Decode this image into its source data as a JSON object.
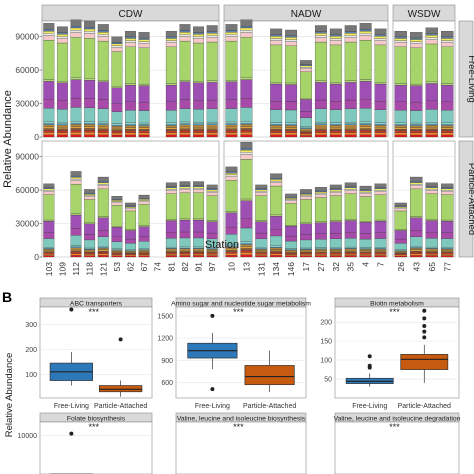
{
  "figure": {
    "panel_b_letter": "B"
  },
  "panelA": {
    "ylabel": "Relative Abundance",
    "xlabel": "Station",
    "col_strips": [
      "CDW",
      "NADW",
      "WSDW"
    ],
    "row_strips": [
      "Free-Living",
      "Particle-Attached"
    ],
    "y_ticks": [
      "0",
      "30000",
      "60000",
      "90000"
    ],
    "stations_groups": [
      [
        "103",
        "109",
        "112",
        "118",
        "121",
        "53",
        "62",
        "67",
        "74",
        "81",
        "82",
        "91",
        "97"
      ],
      [
        "10",
        "13",
        "131",
        "134",
        "146",
        "17",
        "27",
        "32",
        "35",
        "4",
        "7"
      ],
      [
        "26",
        "43",
        "65",
        "77"
      ]
    ],
    "palette": [
      "#e41a1c",
      "#f08a2e",
      "#c0392b",
      "#8e5a3c",
      "#d9a441",
      "#b8863b",
      "#56b4e9",
      "#8fd3cc",
      "#7fc8be",
      "#a84aa8",
      "#9d4fb3",
      "#b5d67a",
      "#a6d36a",
      "#f7c8c8",
      "#e6e6e6",
      "#f2e85c",
      "#5b7fb0",
      "#777777"
    ]
  },
  "chart_data": [
    {
      "type": "bar",
      "title": "Free-Living",
      "facet_columns": [
        "CDW",
        "NADW",
        "WSDW"
      ],
      "stacked": true,
      "xlabel": "Station",
      "ylabel": "Relative Abundance",
      "ylim": [
        0,
        104000
      ],
      "groups": [
        {
          "name": "CDW",
          "categories": [
            "103",
            "109",
            "112",
            "118",
            "121",
            "53",
            "62",
            "67",
            "74",
            "81",
            "82",
            "91",
            "97"
          ],
          "totals": [
            101000,
            98000,
            104000,
            103000,
            100000,
            89000,
            94000,
            93000,
            0,
            94000,
            100000,
            98000,
            99000
          ]
        },
        {
          "name": "NADW",
          "categories": [
            "10",
            "13",
            "131",
            "134",
            "146",
            "17",
            "27",
            "32",
            "35",
            "4",
            "7"
          ],
          "totals": [
            100000,
            104000,
            0,
            96000,
            95000,
            68000,
            99000,
            96000,
            99000,
            101000,
            96000
          ]
        },
        {
          "name": "WSDW",
          "categories": [
            "26",
            "43",
            "65",
            "77"
          ],
          "totals": [
            94000,
            93000,
            97000,
            94000
          ]
        }
      ]
    },
    {
      "type": "bar",
      "title": "Particle-Attached",
      "facet_columns": [
        "CDW",
        "NADW",
        "WSDW"
      ],
      "stacked": true,
      "xlabel": "Station",
      "ylabel": "Relative Abundance",
      "ylim": [
        0,
        104000
      ],
      "groups": [
        {
          "name": "CDW",
          "categories": [
            "103",
            "109",
            "112",
            "118",
            "121",
            "53",
            "62",
            "67",
            "74",
            "81",
            "82",
            "91",
            "97"
          ],
          "totals": [
            65000,
            0,
            76000,
            60000,
            71000,
            54000,
            48000,
            55000,
            0,
            66000,
            67000,
            67000,
            64000
          ]
        },
        {
          "name": "NADW",
          "categories": [
            "10",
            "13",
            "131",
            "134",
            "146",
            "17",
            "27",
            "32",
            "35",
            "4",
            "7"
          ],
          "totals": [
            80000,
            102000,
            64000,
            74000,
            56000,
            60000,
            62000,
            64000,
            66000,
            63000,
            65000
          ]
        },
        {
          "name": "WSDW",
          "categories": [
            "26",
            "43",
            "65",
            "77"
          ],
          "totals": [
            48000,
            71000,
            66000,
            65000
          ]
        }
      ]
    },
    {
      "type": "boxplot",
      "title": "ABC transporters",
      "categories": [
        "Free-Living",
        "Particle-Attached"
      ],
      "significance": "***",
      "y_ticks": [
        "100",
        "200",
        "300"
      ],
      "ylim": [
        5,
        370
      ],
      "boxes": [
        {
          "name": "Free-Living",
          "min": 55,
          "q1": 75,
          "median": 110,
          "q3": 145,
          "max": 190,
          "outliers": [
            360
          ]
        },
        {
          "name": "Particle-Attached",
          "min": 10,
          "q1": 30,
          "median": 40,
          "q3": 55,
          "max": 75,
          "outliers": [
            240
          ]
        }
      ]
    },
    {
      "type": "boxplot",
      "title": "Amino sugar and nucleotide sugar metabolism",
      "categories": [
        "Free-Living",
        "Particle-Attached"
      ],
      "significance": "***",
      "y_ticks": [
        "600",
        "900",
        "1200",
        "1500"
      ],
      "ylim": [
        390,
        1620
      ],
      "boxes": [
        {
          "name": "Free-Living",
          "min": 780,
          "q1": 930,
          "median": 1030,
          "q3": 1130,
          "max": 1270,
          "outliers": [
            1500,
            510
          ]
        },
        {
          "name": "Particle-Attached",
          "min": 470,
          "q1": 570,
          "median": 680,
          "q3": 830,
          "max": 1030,
          "outliers": []
        }
      ]
    },
    {
      "type": "boxplot",
      "title": "Biotin metabolism",
      "categories": [
        "Free-Living",
        "Particle-Attached"
      ],
      "significance": "***",
      "y_ticks": [
        "50",
        "100",
        "150",
        "200"
      ],
      "ylim": [
        0,
        240
      ],
      "boxes": [
        {
          "name": "Free-Living",
          "min": 30,
          "q1": 38,
          "median": 44,
          "q3": 52,
          "max": 65,
          "outliers": [
            80,
            85,
            110
          ]
        },
        {
          "name": "Particle-Attached",
          "min": 40,
          "q1": 75,
          "median": 102,
          "q3": 115,
          "max": 140,
          "outliers": [
            160,
            175,
            190,
            210,
            230
          ]
        }
      ]
    },
    {
      "type": "boxplot",
      "title": "Folate biosynthesis",
      "categories": [
        "Free-Living",
        "Particle-Attached"
      ],
      "significance": "***",
      "y_ticks": [
        "8000",
        "10000"
      ],
      "ylim": [
        6000,
        10700
      ],
      "boxes": [
        {
          "name": "Free-Living",
          "min": 6000,
          "q1": 6100,
          "median": 6700,
          "q3": 7400,
          "max": 8000,
          "outliers": [
            10100
          ]
        }
      ]
    },
    {
      "type": "boxplot",
      "title": "Valine, leucine and isoleucine biosynthesis",
      "categories": [
        "Free-Living",
        "Particle-Attached"
      ],
      "significance": "***",
      "y_ticks": [],
      "boxes": []
    },
    {
      "type": "boxplot",
      "title": "Valine, leucine and isoleucine degradation",
      "categories": [
        "Free-Living",
        "Particle-Attached"
      ],
      "significance": "***",
      "y_ticks": [],
      "boxes": []
    }
  ]
}
